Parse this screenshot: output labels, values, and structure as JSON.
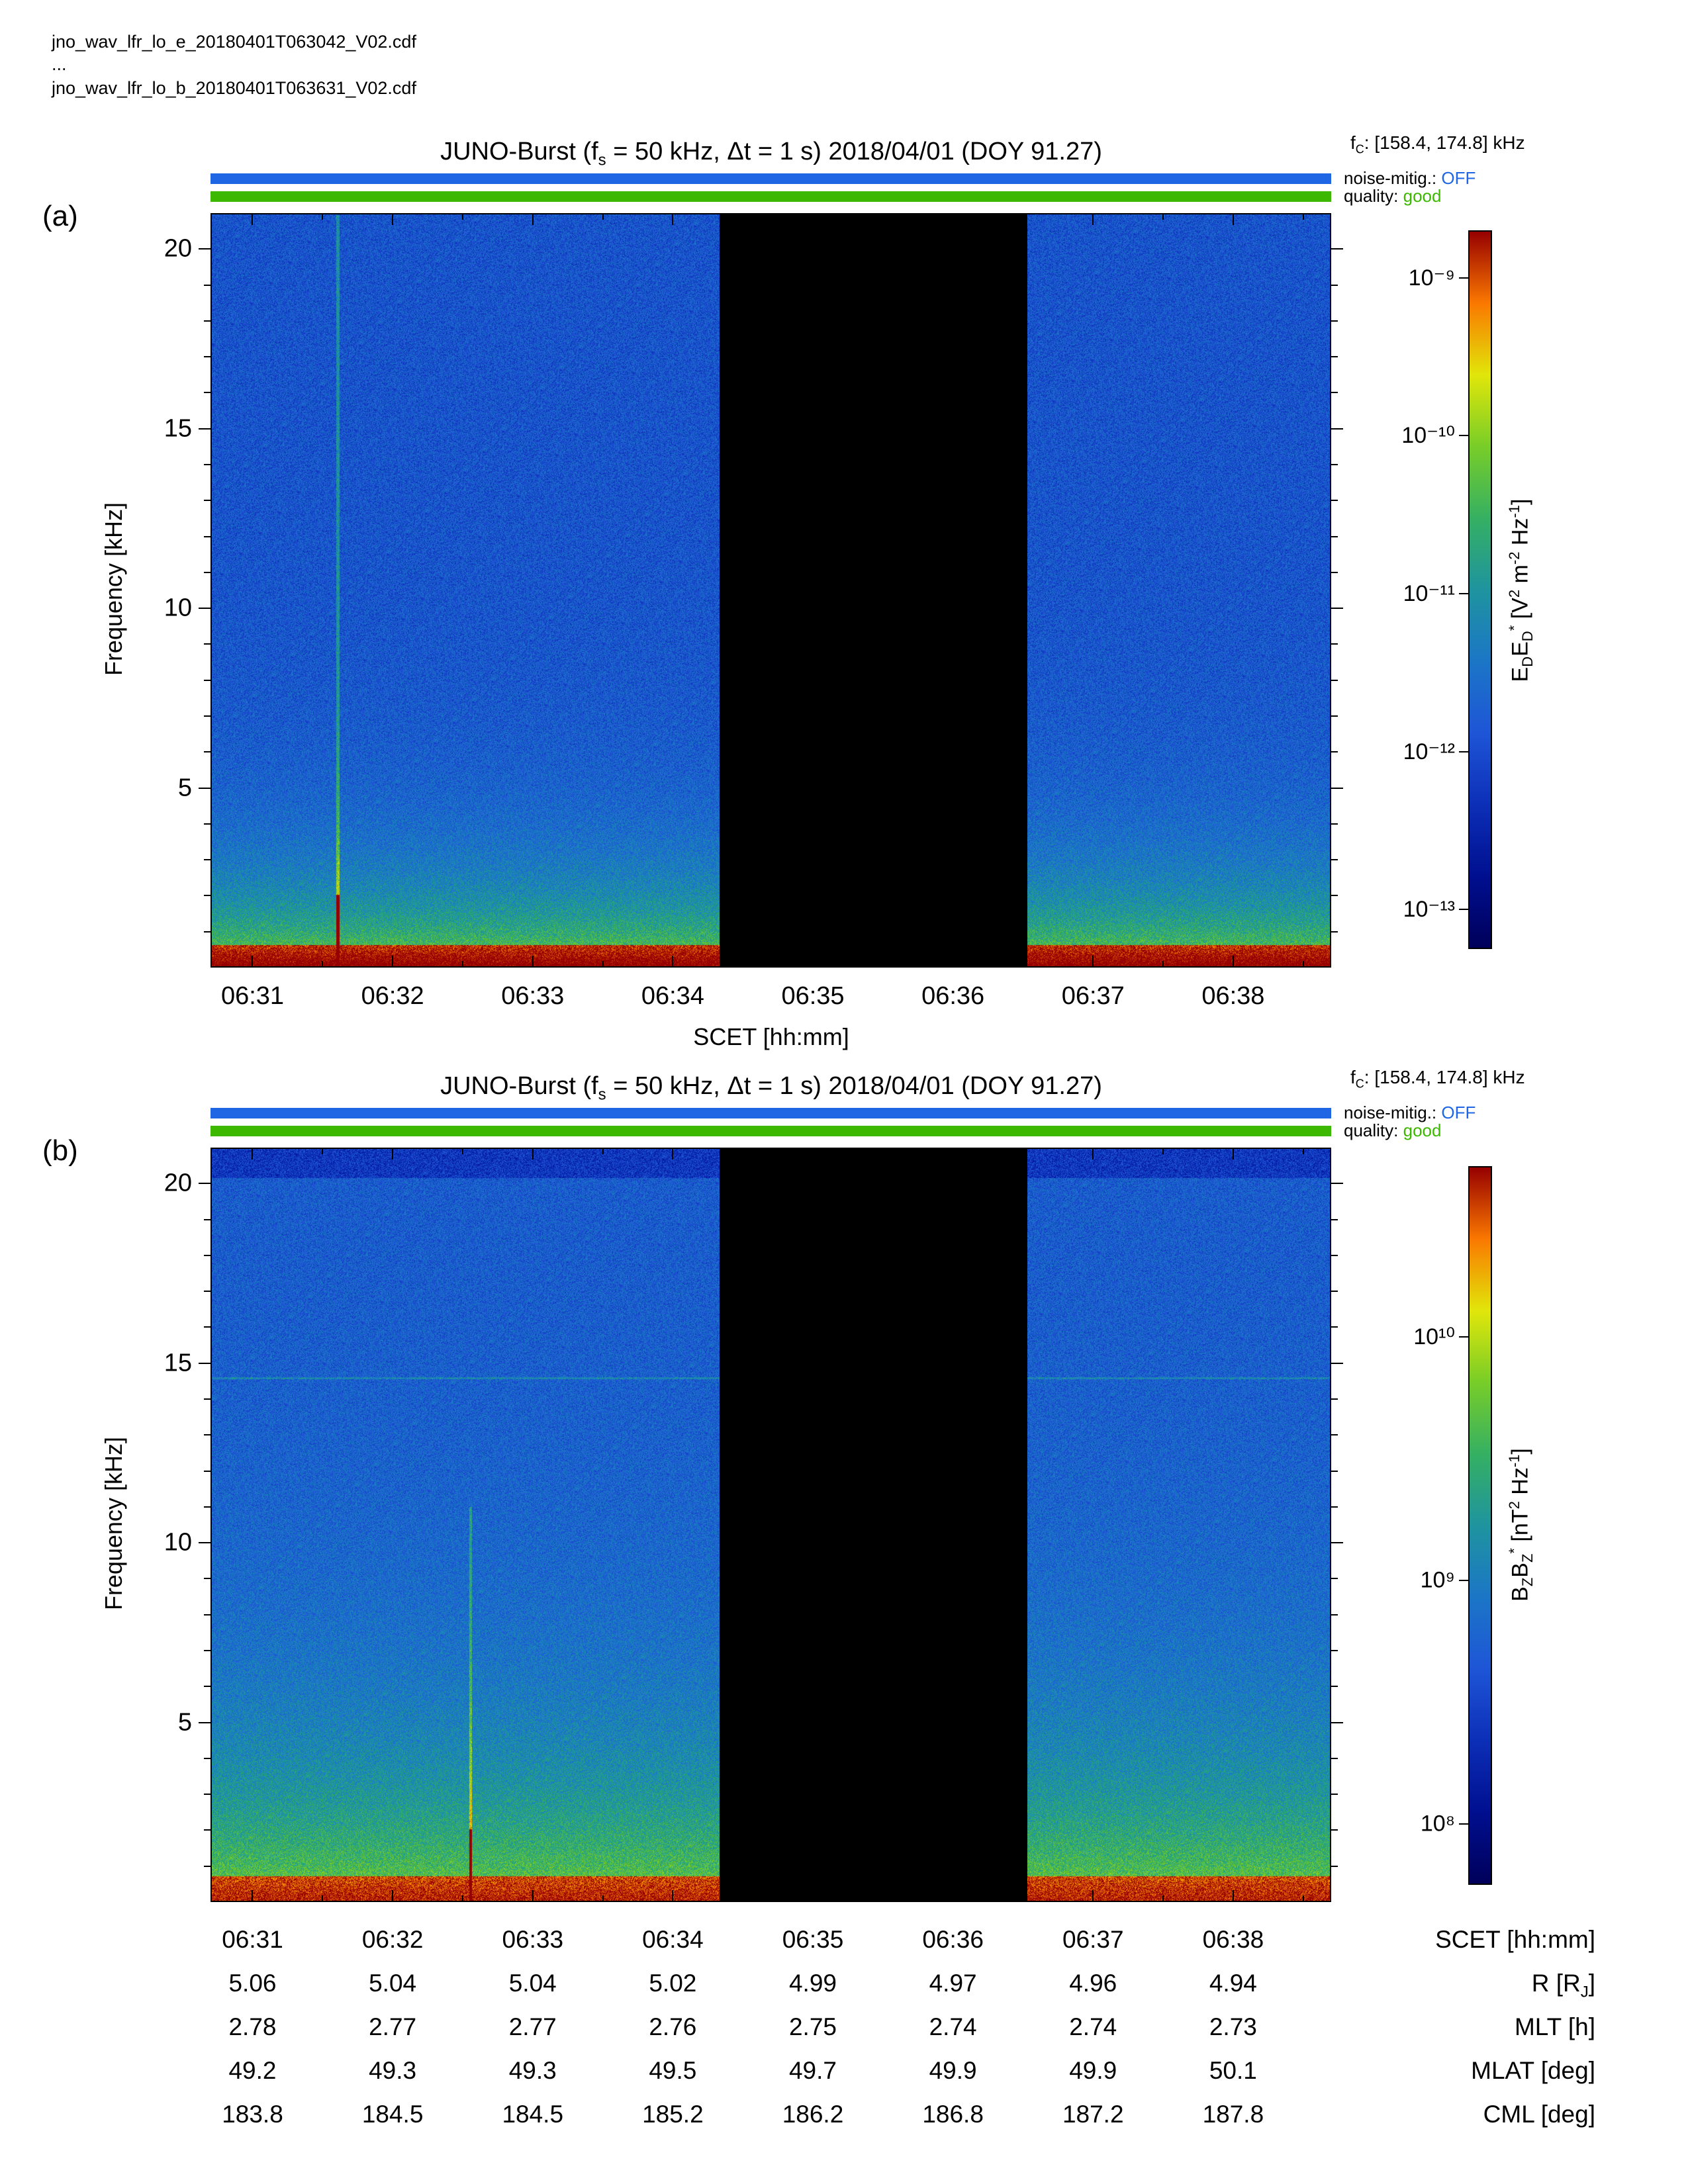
{
  "files": [
    "jno_wav_lfr_lo_e_20180401T063042_V02.cdf",
    "...",
    "jno_wav_lfr_lo_b_20180401T063631_V02.cdf"
  ],
  "colors": {
    "noise_bar": "#1f66e5",
    "quality_bar": "#3cb800",
    "data_gap": "#000000"
  },
  "chart_data": [
    {
      "type": "heatmap",
      "panel_label": "(a)",
      "title": "JUNO-Burst (f_s = 50 kHz, Δt = 1 s)  2018/04/01 (DOY 91.27)",
      "title_parts": {
        "prefix": "JUNO-Burst (f",
        "sub": "s",
        "suffix": " = 50 kHz, Δt = 1 s)  2018/04/01 (DOY 91.27)"
      },
      "fc": "[158.4, 174.8] kHz",
      "noise_mitig": {
        "label": "noise-mitig.:",
        "value": "OFF"
      },
      "quality": {
        "label": "quality:",
        "value": "good"
      },
      "xlabel": "SCET [hh:mm]",
      "ylabel": "Frequency [kHz]",
      "x_ticks": [
        "06:31",
        "06:32",
        "06:33",
        "06:34",
        "06:35",
        "06:36",
        "06:37",
        "06:38"
      ],
      "y_ticks": [
        5,
        10,
        15,
        20
      ],
      "ylim": [
        0,
        21
      ],
      "xlim": [
        "06:30:42",
        "06:38:42"
      ],
      "data_gap": [
        "06:34:20",
        "06:36:32"
      ],
      "colorbar_label": "E_D E_D* [V² m⁻² Hz⁻¹]",
      "colorbar_ticks": [
        "10⁻⁹",
        "10⁻¹⁰",
        "10⁻¹¹",
        "10⁻¹²",
        "10⁻¹³"
      ],
      "colorbar_range_log10": [
        -13.25,
        -8.7
      ],
      "features": [
        {
          "kind": "vertical-line",
          "time": "06:31:36",
          "fmax_kHz": 21
        }
      ]
    },
    {
      "type": "heatmap",
      "panel_label": "(b)",
      "title": "JUNO-Burst (f_s = 50 kHz, Δt = 1 s)  2018/04/01 (DOY 91.27)",
      "title_parts": {
        "prefix": "JUNO-Burst (f",
        "sub": "s",
        "suffix": " = 50 kHz, Δt = 1 s)  2018/04/01 (DOY 91.27)"
      },
      "fc": "[158.4, 174.8] kHz",
      "noise_mitig": {
        "label": "noise-mitig.:",
        "value": "OFF"
      },
      "quality": {
        "label": "quality:",
        "value": "good"
      },
      "xlabel": "SCET [hh:mm]",
      "ylabel": "Frequency [kHz]",
      "x_ticks": [
        "06:31",
        "06:32",
        "06:33",
        "06:34",
        "06:35",
        "06:36",
        "06:37",
        "06:38"
      ],
      "y_ticks": [
        5,
        10,
        15,
        20
      ],
      "ylim": [
        0,
        21
      ],
      "xlim": [
        "06:30:42",
        "06:38:42"
      ],
      "data_gap": [
        "06:34:20",
        "06:36:32"
      ],
      "colorbar_label": "B_Z B_Z* [nT² Hz⁻¹]",
      "colorbar_ticks": [
        "10¹⁰",
        "10⁹",
        "10⁸"
      ],
      "colorbar_range_log10": [
        7.75,
        10.7
      ],
      "features": [
        {
          "kind": "vertical-line",
          "time": "06:32:33",
          "fmax_kHz": 11
        },
        {
          "kind": "horizontal-line",
          "freq_kHz": 14.6
        }
      ]
    }
  ],
  "ephemeris": {
    "rows": [
      {
        "name": "SCET [hh:mm]",
        "values": [
          "06:31",
          "06:32",
          "06:33",
          "06:34",
          "06:35",
          "06:36",
          "06:37",
          "06:38"
        ]
      },
      {
        "name": "R [R_J]",
        "values": [
          "5.06",
          "5.04",
          "5.04",
          "5.02",
          "4.99",
          "4.97",
          "4.96",
          "4.94"
        ]
      },
      {
        "name": "MLT [h]",
        "values": [
          "2.78",
          "2.77",
          "2.77",
          "2.76",
          "2.75",
          "2.74",
          "2.74",
          "2.73"
        ]
      },
      {
        "name": "MLAT [deg]",
        "values": [
          "49.2",
          "49.3",
          "49.3",
          "49.5",
          "49.7",
          "49.9",
          "49.9",
          "50.1"
        ]
      },
      {
        "name": "CML [deg]",
        "values": [
          "183.8",
          "184.5",
          "184.5",
          "185.2",
          "186.2",
          "186.8",
          "187.2",
          "187.8"
        ]
      }
    ]
  }
}
